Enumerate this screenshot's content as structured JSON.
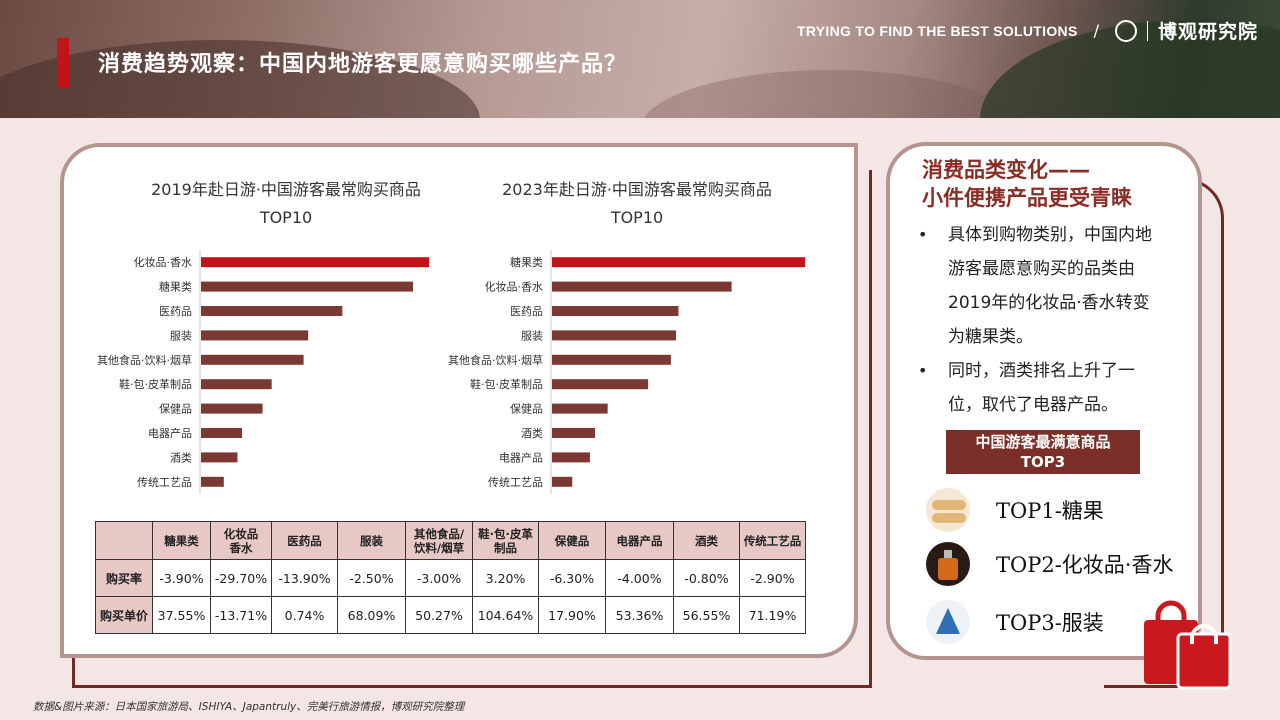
{
  "header": {
    "title": "消费趋势观察：中国内地游客更愿意购买哪些产品？",
    "tagline": "TRYING TO FIND THE BEST SOLUTIONS",
    "slash": "/",
    "brand_name": "博观研究院"
  },
  "chart_data": [
    {
      "type": "bar",
      "title": "2019年赴日游·中国游客最常购买商品",
      "subtitle": "TOP10",
      "categories": [
        "化妆品·香水",
        "糖果类",
        "医药品",
        "服装",
        "其他食品·饮料·烟草",
        "鞋·包·皮革制品",
        "保健品",
        "电器产品",
        "酒类",
        "传统工艺品"
      ],
      "values": [
        100,
        93,
        62,
        47,
        45,
        31,
        27,
        18,
        16,
        10
      ],
      "highlight_color": "#c0141a",
      "bar_color": "#7a3a33"
    },
    {
      "type": "bar",
      "title": "2023年赴日游·中国游客最常购买商品",
      "subtitle": "TOP10",
      "categories": [
        "糖果类",
        "化妆品·香水",
        "医药品",
        "服装",
        "其他食品·饮料·烟草",
        "鞋·包·皮革制品",
        "保健品",
        "酒类",
        "电器产品",
        "传统工艺品"
      ],
      "values": [
        100,
        71,
        50,
        49,
        47,
        38,
        22,
        17,
        15,
        8
      ],
      "highlight_color": "#c0141a",
      "bar_color": "#7a3a33"
    }
  ],
  "table": {
    "columns": [
      "",
      "糖果类",
      "化妆品\n香水",
      "医药品",
      "服装",
      "其他食品/\n饮料/烟草",
      "鞋·包·皮革\n制品",
      "保健品",
      "电器产品",
      "酒类",
      "传统工艺品"
    ],
    "rows": [
      {
        "label": "购买率",
        "values": [
          "-3.90%",
          "-29.70%",
          "-13.90%",
          "-2.50%",
          "-3.00%",
          "3.20%",
          "-6.30%",
          "-4.00%",
          "-0.80%",
          "-2.90%"
        ]
      },
      {
        "label": "购买单价",
        "values": [
          "37.55%",
          "-13.71%",
          "0.74%",
          "68.09%",
          "50.27%",
          "104.64%",
          "17.90%",
          "53.36%",
          "56.55%",
          "71.19%"
        ]
      }
    ]
  },
  "right": {
    "title_line1": "消费品类变化——",
    "title_line2": "小件便携产品更受青睐",
    "bullets": [
      "具体到购物类别，中国内地游客最愿意购买的品类由2019年的化妆品·香水转变为糖果类。",
      "同时，酒类排名上升了一位，取代了电器产品。"
    ],
    "badge_line1": "中国游客最满意商品",
    "badge_line2": "TOP3",
    "top3": [
      "TOP1-糖果",
      "TOP2-化妆品·香水",
      "TOP3-服装"
    ]
  },
  "source": "数据&图片来源：日本国家旅游局、ISHIYA、Japantruly、完美行旅游情报，博观研究院整理"
}
